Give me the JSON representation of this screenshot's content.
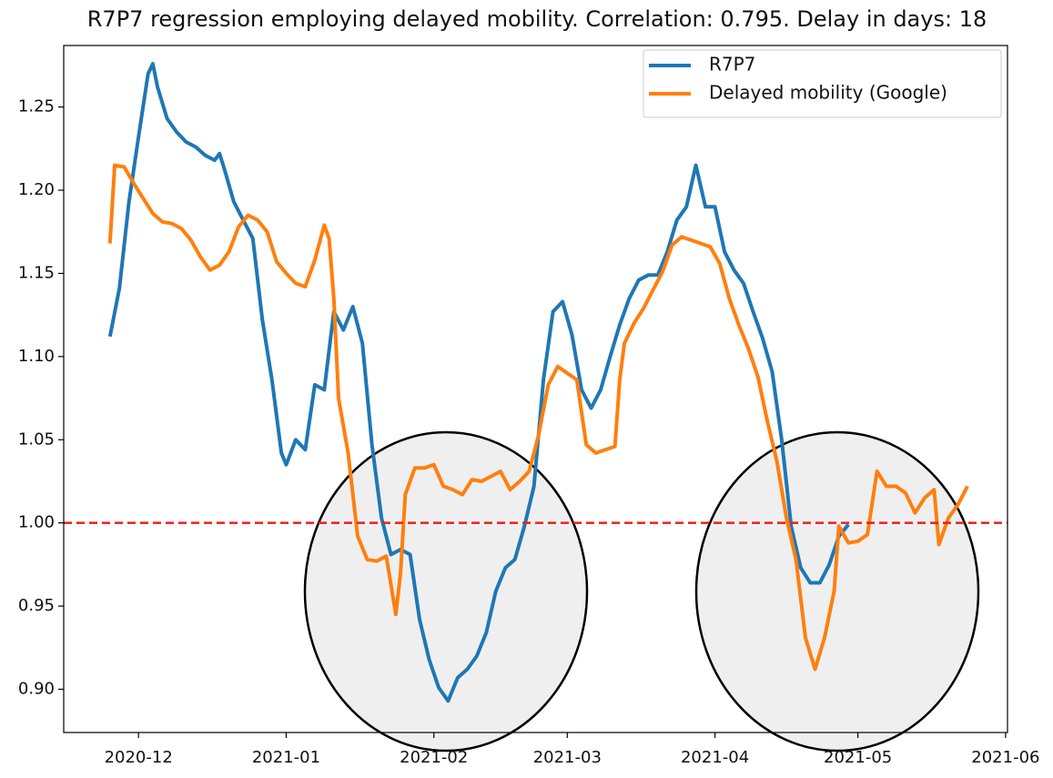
{
  "chart_data": {
    "type": "line",
    "title": "R7P7 regression employing delayed mobility. Correlation: 0.795. Delay in days: 18",
    "xlim": [
      -15.7,
      182.4
    ],
    "xticks": [
      {
        "value": 0,
        "label": "2020-12"
      },
      {
        "value": 31,
        "label": "2021-01"
      },
      {
        "value": 62,
        "label": "2021-02"
      },
      {
        "value": 90,
        "label": "2021-03"
      },
      {
        "value": 121,
        "label": "2021-04"
      },
      {
        "value": 151,
        "label": "2021-05"
      },
      {
        "value": 182,
        "label": "2021-06"
      }
    ],
    "ylim": [
      0.874,
      1.287
    ],
    "yticks": [
      {
        "value": 0.9,
        "label": "0.90"
      },
      0.95,
      {
        "value": 1,
        "label": "1.00"
      },
      1.05,
      {
        "value": 1.1,
        "label": "1.10"
      },
      1.15,
      {
        "value": 1.2,
        "label": "1.20"
      },
      1.25
    ],
    "legend": "upper right",
    "reference_line": {
      "value": 1,
      "color": "#e8211e"
    },
    "series": [
      {
        "name": "R7P7",
        "color": "#1f77b4",
        "x": [
          -6,
          -4,
          -2,
          0,
          2,
          3,
          4,
          6,
          8,
          10,
          12,
          14,
          16,
          17,
          18,
          20,
          22,
          24,
          26,
          28,
          30,
          31,
          33,
          35,
          37,
          39,
          41,
          43,
          45,
          47,
          49,
          51,
          53,
          55,
          57,
          59,
          61,
          63,
          65,
          67,
          69,
          71,
          73,
          75,
          77,
          79,
          81,
          83,
          85,
          87,
          89,
          91,
          93,
          95,
          97,
          99,
          101,
          103,
          105,
          107,
          109,
          111,
          113,
          115,
          117,
          119,
          121,
          123,
          125,
          127,
          129,
          131,
          133,
          135,
          137,
          139,
          141,
          143,
          145,
          147,
          149
        ],
        "values": [
          1.112,
          1.141,
          1.193,
          1.232,
          1.27,
          1.276,
          1.262,
          1.243,
          1.235,
          1.229,
          1.226,
          1.221,
          1.218,
          1.222,
          1.213,
          1.193,
          1.182,
          1.171,
          1.122,
          1.086,
          1.042,
          1.035,
          1.05,
          1.044,
          1.083,
          1.08,
          1.127,
          1.116,
          1.13,
          1.108,
          1.047,
          1.003,
          0.981,
          0.984,
          0.981,
          0.942,
          0.918,
          0.901,
          0.893,
          0.907,
          0.912,
          0.92,
          0.934,
          0.959,
          0.973,
          0.978,
          0.998,
          1.022,
          1.086,
          1.127,
          1.133,
          1.113,
          1.08,
          1.069,
          1.08,
          1.1,
          1.119,
          1.135,
          1.146,
          1.149,
          1.149,
          1.163,
          1.182,
          1.19,
          1.215,
          1.19,
          1.19,
          1.163,
          1.152,
          1.144,
          1.127,
          1.111,
          1.091,
          1.05,
          0.998,
          0.973,
          0.964,
          0.964,
          0.975,
          0.992,
          0.999
        ]
      },
      {
        "name": "Delayed mobility (Google)",
        "color": "#ff7f0e",
        "x": [
          -6,
          -5,
          -3,
          -1,
          1,
          3,
          5,
          7,
          9,
          11,
          13,
          15,
          17,
          19,
          21,
          23,
          25,
          27,
          29,
          31,
          33,
          35,
          37,
          39,
          40,
          41,
          42,
          44,
          46,
          48,
          50,
          52,
          54,
          55,
          56,
          58,
          60,
          62,
          64,
          66,
          68,
          70,
          72,
          74,
          76,
          78,
          80,
          82,
          84,
          86,
          88,
          90,
          92,
          94,
          96,
          98,
          100,
          101,
          102,
          104,
          106,
          108,
          110,
          112,
          114,
          116,
          118,
          120,
          122,
          124,
          126,
          128,
          130,
          132,
          134,
          136,
          138,
          140,
          142,
          144,
          146,
          147,
          149,
          151,
          153,
          155,
          157,
          159,
          161,
          163,
          165,
          167,
          168,
          170,
          172,
          174
        ],
        "values": [
          1.168,
          1.215,
          1.214,
          1.204,
          1.195,
          1.186,
          1.181,
          1.18,
          1.177,
          1.17,
          1.16,
          1.152,
          1.155,
          1.163,
          1.178,
          1.185,
          1.182,
          1.175,
          1.157,
          1.15,
          1.144,
          1.142,
          1.158,
          1.179,
          1.171,
          1.135,
          1.075,
          1.042,
          0.992,
          0.978,
          0.977,
          0.98,
          0.945,
          0.97,
          1.017,
          1.033,
          1.033,
          1.035,
          1.022,
          1.02,
          1.017,
          1.026,
          1.025,
          1.028,
          1.031,
          1.02,
          1.025,
          1.031,
          1.053,
          1.083,
          1.094,
          1.09,
          1.086,
          1.047,
          1.042,
          1.044,
          1.046,
          1.086,
          1.108,
          1.12,
          1.129,
          1.14,
          1.151,
          1.167,
          1.172,
          1.17,
          1.168,
          1.166,
          1.156,
          1.135,
          1.119,
          1.105,
          1.088,
          1.061,
          1.037,
          1.003,
          0.978,
          0.931,
          0.912,
          0.931,
          0.959,
          0.998,
          0.988,
          0.989,
          0.993,
          1.031,
          1.022,
          1.022,
          1.018,
          1.006,
          1.015,
          1.02,
          0.987,
          1.003,
          1.011,
          1.022
        ]
      }
    ]
  }
}
